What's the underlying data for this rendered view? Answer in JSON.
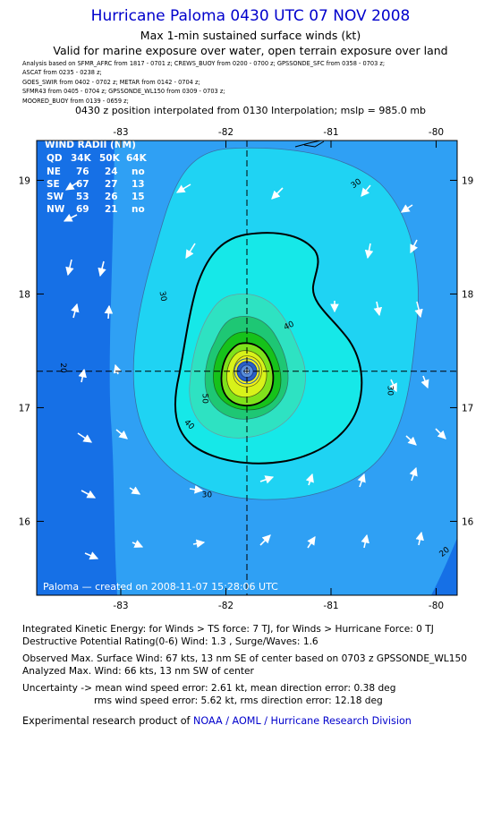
{
  "header": {
    "title": "Hurricane Paloma 0430 UTC 07 NOV 2008",
    "subtitle": "Max 1-min sustained surface winds (kt)",
    "validity": "Valid for marine exposure over water, open terrain exposure over land",
    "analysis_lines": [
      "Analysis based on  SFMR_AFRC from 1817 - 0701 z;  CREWS_BUOY from 0200 - 0700 z;  GPSSONDE_SFC from 0358 - 0703 z;",
      "ASCAT from 0235 - 0238 z;",
      "GOES_SWIR from 0402 - 0702 z;  METAR from 0142 - 0704 z;",
      "SFMR43 from 0405 - 0704 z;  GPSSONDE_WL150 from 0309 - 0703 z;",
      "MOORED_BUOY from 0139 - 0659 z;"
    ],
    "position_line": "0430 z position interpolated from 0130 Interpolation; mslp = 985.0 mb"
  },
  "chart_data": {
    "type": "contour",
    "xlim": [
      -83.8,
      -79.8
    ],
    "ylim": [
      15.35,
      19.35
    ],
    "x_ticks": [
      -83,
      -82,
      -81,
      -80
    ],
    "x_tick_labels": [
      "-83",
      "-82",
      "-81",
      "-80"
    ],
    "y_ticks": [
      16,
      17,
      18,
      19
    ],
    "y_tick_labels": [
      "16",
      "17",
      "18",
      "19"
    ],
    "center": {
      "lon": -81.8,
      "lat": 17.32
    },
    "contour_labels": [
      {
        "text": "20",
        "lon": -83.55,
        "lat": 17.35,
        "rotate": 90
      },
      {
        "text": "30",
        "lon": -82.6,
        "lat": 17.98,
        "rotate": 80
      },
      {
        "text": "30",
        "lon": -80.76,
        "lat": 18.97,
        "rotate": -35
      },
      {
        "text": "30",
        "lon": -82.18,
        "lat": 16.23,
        "rotate": 0
      },
      {
        "text": "30",
        "lon": -80.44,
        "lat": 17.15,
        "rotate": 90
      },
      {
        "text": "40",
        "lon": -81.4,
        "lat": 17.72,
        "rotate": -25
      },
      {
        "text": "40",
        "lon": -82.35,
        "lat": 16.85,
        "rotate": 45
      },
      {
        "text": "50",
        "lon": -82.2,
        "lat": 17.08,
        "rotate": 90
      },
      {
        "text": "20",
        "lon": -79.92,
        "lat": 15.73,
        "rotate": -40
      }
    ],
    "wind_radii": {
      "title": "WIND RADII (NM)",
      "headers": [
        "QD",
        "34K",
        "50K",
        "64K"
      ],
      "rows": [
        [
          "NE",
          "76",
          "24",
          "no"
        ],
        [
          "SE",
          "67",
          "27",
          "13"
        ],
        [
          "SW",
          "53",
          "26",
          "15"
        ],
        [
          "NW",
          "69",
          "21",
          "no"
        ]
      ]
    },
    "footer_label": "Paloma  —  created on 2008-11-07 15:28:06 UTC"
  },
  "info": {
    "ike": "Integrated Kinetic Energy:  for Winds > TS force: 7 TJ,  for Winds > Hurricane Force: 0 TJ",
    "dpr": "Destructive Potential Rating(0-6)   Wind: 1.3 , Surge/Waves: 1.6",
    "observed": "Observed Max. Surface Wind: 67 kts, 13 nm SE of center based on 0703 z GPSSONDE_WL150",
    "analyzed": "Analyzed Max. Wind: 66 kts, 13 nm SW of center",
    "uncertainty1": "Uncertainty -> mean wind speed error: 2.61 kt,   mean direction error: 0.38 deg",
    "uncertainty2": "rms wind speed error: 5.62 kt,   rms direction error: 12.18 deg",
    "product_prefix": "Experimental research product of ",
    "product_org": "NOAA / AOML / Hurricane Research Division"
  },
  "colors": {
    "title": "#0000cc",
    "ring_0": "#1670e6",
    "ring_1": "#2fa0f4",
    "ring_2": "#1fd3f3",
    "ring_3": "#16e8e8",
    "ring_4": "#2ee2c2",
    "ring_5": "#1ec774",
    "ring_6": "#16c21a",
    "ring_7": "#7fe21b",
    "ring_8": "#d8f21a",
    "ring_9": "#f2f21a",
    "eye": "#2a60c8"
  }
}
